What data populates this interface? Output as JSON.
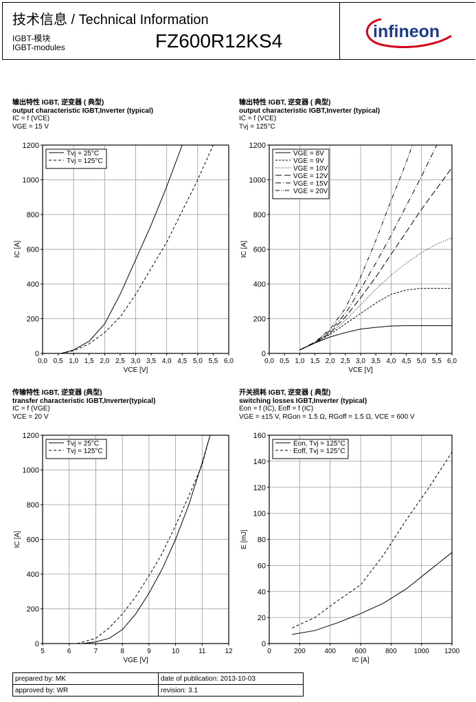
{
  "header": {
    "title": "技术信息 / Technical Information",
    "subtitle_cn": "IGBT-模块",
    "subtitle_en": "IGBT-modules",
    "part_number": "FZ600R12KS4",
    "logo_text": "infineon",
    "brand_color": "#d6001c"
  },
  "blocks": [
    {
      "line1": "输出特性 IGBT, 逆变器 ( 典型)",
      "line2": "output characteristic IGBT,Inverter (typical)",
      "line3": "IC = f (VCE)",
      "line4": "VGE = 15 V"
    },
    {
      "line1": "输出特性 IGBT, 逆变器 ( 典型)",
      "line2": "output characteristic IGBT,Inverter (typical)",
      "line3": "IC = f (VCE)",
      "line4": "Tvj = 125°C"
    },
    {
      "line1": "传输特性 IGBT, 逆变器 (典型)",
      "line2": "transfer characteristic IGBT,Inverter(typical)",
      "line3": "IC = f (VGE)",
      "line4": "VCE = 20 V"
    },
    {
      "line1": "开关损耗 IGBT, 逆变器 ( 典型)",
      "line2": "switching losses IGBT,Inverter (typical)",
      "line3": "Eon = f (IC), Eoff = f (IC)",
      "line4": "VGE = ±15 V, RGon = 1.5 Ω, RGoff = 1.5 Ω, VCE = 600 V"
    }
  ],
  "chart_data": [
    {
      "type": "line",
      "xlabel": "VCE [V]",
      "ylabel": "IC [A]",
      "xlim": [
        0,
        6
      ],
      "ylim": [
        0,
        1200
      ],
      "xticks": [
        "0,0",
        "0,5",
        "1,0",
        "1,5",
        "2,0",
        "2,5",
        "3,0",
        "3,5",
        "4,0",
        "4,5",
        "5,0",
        "5,5",
        "6,0"
      ],
      "xtick_values": [
        0,
        0.5,
        1,
        1.5,
        2,
        2.5,
        3,
        3.5,
        4,
        4.5,
        5,
        5.5,
        6
      ],
      "ytick_values": [
        0,
        200,
        400,
        600,
        800,
        1000,
        1200
      ],
      "xgrid_step": 1,
      "legend": "top-left",
      "series": [
        {
          "name": "Tvj = 25°C",
          "style": "solid",
          "x": [
            0.6,
            1.0,
            1.5,
            2.0,
            2.5,
            3.0,
            3.5,
            4.0,
            4.5
          ],
          "y": [
            0,
            20,
            70,
            170,
            340,
            540,
            740,
            960,
            1200
          ]
        },
        {
          "name": "Tvj = 125°C",
          "style": "dash",
          "x": [
            0.6,
            1.0,
            1.5,
            2.0,
            2.5,
            3.0,
            3.5,
            4.0,
            4.5,
            5.0,
            5.5
          ],
          "y": [
            0,
            15,
            55,
            120,
            210,
            340,
            490,
            640,
            820,
            1000,
            1200
          ]
        }
      ]
    },
    {
      "type": "line",
      "xlabel": "VCE [V]",
      "ylabel": "IC [A]",
      "xlim": [
        0,
        6
      ],
      "ylim": [
        0,
        1200
      ],
      "xticks": [
        "0,0",
        "0,5",
        "1,0",
        "1,5",
        "2,0",
        "2,5",
        "3,0",
        "3,5",
        "4,0",
        "4,5",
        "5,0",
        "5,5",
        "6,0"
      ],
      "xtick_values": [
        0,
        0.5,
        1,
        1.5,
        2,
        2.5,
        3,
        3.5,
        4,
        4.5,
        5,
        5.5,
        6
      ],
      "ytick_values": [
        0,
        200,
        400,
        600,
        800,
        1000,
        1200
      ],
      "xgrid_step": 1,
      "legend": "top-left",
      "series": [
        {
          "name": "VGE = 8V",
          "style": "solid",
          "x": [
            1,
            1.5,
            2,
            2.5,
            3,
            3.5,
            4,
            4.5,
            5,
            6
          ],
          "y": [
            20,
            60,
            95,
            120,
            140,
            150,
            158,
            160,
            160,
            160
          ]
        },
        {
          "name": "VGE = 9V",
          "style": "dash-short",
          "x": [
            1,
            1.5,
            2,
            2.5,
            3,
            3.5,
            4,
            4.5,
            5,
            6
          ],
          "y": [
            20,
            60,
            110,
            170,
            230,
            290,
            340,
            365,
            375,
            375
          ]
        },
        {
          "name": "VGE = 10V",
          "style": "dot",
          "x": [
            1,
            1.5,
            2,
            2.5,
            3,
            3.5,
            4,
            4.5,
            5,
            5.5,
            6
          ],
          "y": [
            20,
            60,
            115,
            190,
            280,
            370,
            450,
            520,
            580,
            630,
            665
          ]
        },
        {
          "name": "VGE = 12V",
          "style": "dash-long",
          "x": [
            1,
            1.5,
            2,
            2.5,
            3,
            3.5,
            4,
            4.5,
            5,
            5.5,
            6
          ],
          "y": [
            20,
            60,
            120,
            210,
            320,
            440,
            570,
            700,
            830,
            950,
            1070
          ]
        },
        {
          "name": "VGE = 15V",
          "style": "dash-dot",
          "x": [
            1,
            1.5,
            2,
            2.5,
            3,
            3.5,
            4,
            4.5,
            5,
            5.5
          ],
          "y": [
            20,
            65,
            130,
            230,
            370,
            520,
            680,
            850,
            1020,
            1200
          ]
        },
        {
          "name": "VGE = 20V",
          "style": "dash-dot-dot",
          "x": [
            1,
            1.5,
            2,
            2.5,
            3,
            3.5,
            4,
            4.5,
            4.7
          ],
          "y": [
            20,
            65,
            140,
            260,
            440,
            650,
            880,
            1100,
            1200
          ]
        }
      ]
    },
    {
      "type": "line",
      "xlabel": "VGE [V]",
      "ylabel": "IC [A]",
      "xlim": [
        5,
        12
      ],
      "ylim": [
        0,
        1200
      ],
      "xticks": [
        "5",
        "6",
        "7",
        "8",
        "9",
        "10",
        "11",
        "12"
      ],
      "xtick_values": [
        5,
        6,
        7,
        8,
        9,
        10,
        11,
        12
      ],
      "ytick_values": [
        0,
        200,
        400,
        600,
        800,
        1000,
        1200
      ],
      "xgrid_step": 1,
      "legend": "top-left",
      "series": [
        {
          "name": "Tvj = 25°C",
          "style": "solid",
          "x": [
            6.5,
            7,
            7.5,
            8,
            8.5,
            9,
            9.5,
            10,
            10.5,
            11,
            11.3
          ],
          "y": [
            0,
            10,
            30,
            80,
            170,
            290,
            430,
            600,
            800,
            1040,
            1200
          ]
        },
        {
          "name": "Tvj = 125°C",
          "style": "dash",
          "x": [
            6.3,
            7,
            7.5,
            8,
            8.5,
            9,
            9.5,
            10,
            10.5,
            11,
            11.3
          ],
          "y": [
            0,
            30,
            90,
            170,
            270,
            390,
            520,
            680,
            850,
            1030,
            1200
          ]
        }
      ]
    },
    {
      "type": "line",
      "xlabel": "IC [A]",
      "ylabel": "E [mJ]",
      "xlim": [
        0,
        1200
      ],
      "ylim": [
        0,
        160
      ],
      "xticks": [
        "0",
        "200",
        "400",
        "600",
        "800",
        "1000",
        "1200"
      ],
      "xtick_values": [
        0,
        200,
        400,
        600,
        800,
        1000,
        1200
      ],
      "ytick_values": [
        0,
        20,
        40,
        60,
        80,
        100,
        120,
        140,
        160
      ],
      "xgrid_step": 200,
      "legend": "top-left",
      "series": [
        {
          "name": "Eon, Tvj = 125°C",
          "style": "solid",
          "x": [
            150,
            300,
            450,
            600,
            750,
            900,
            1050,
            1200
          ],
          "y": [
            7,
            10,
            16,
            23,
            31,
            42,
            56,
            70
          ]
        },
        {
          "name": "Eoff, Tvj = 125°C",
          "style": "dash",
          "x": [
            150,
            300,
            450,
            600,
            750,
            900,
            1050,
            1200
          ],
          "y": [
            12,
            20,
            33,
            45,
            68,
            95,
            120,
            147
          ]
        }
      ]
    }
  ],
  "footer": {
    "prepared": "prepared by: MK",
    "date": "date of publication: 2013-10-03",
    "approved": "approved by: WR",
    "revision": "revision: 3.1"
  }
}
